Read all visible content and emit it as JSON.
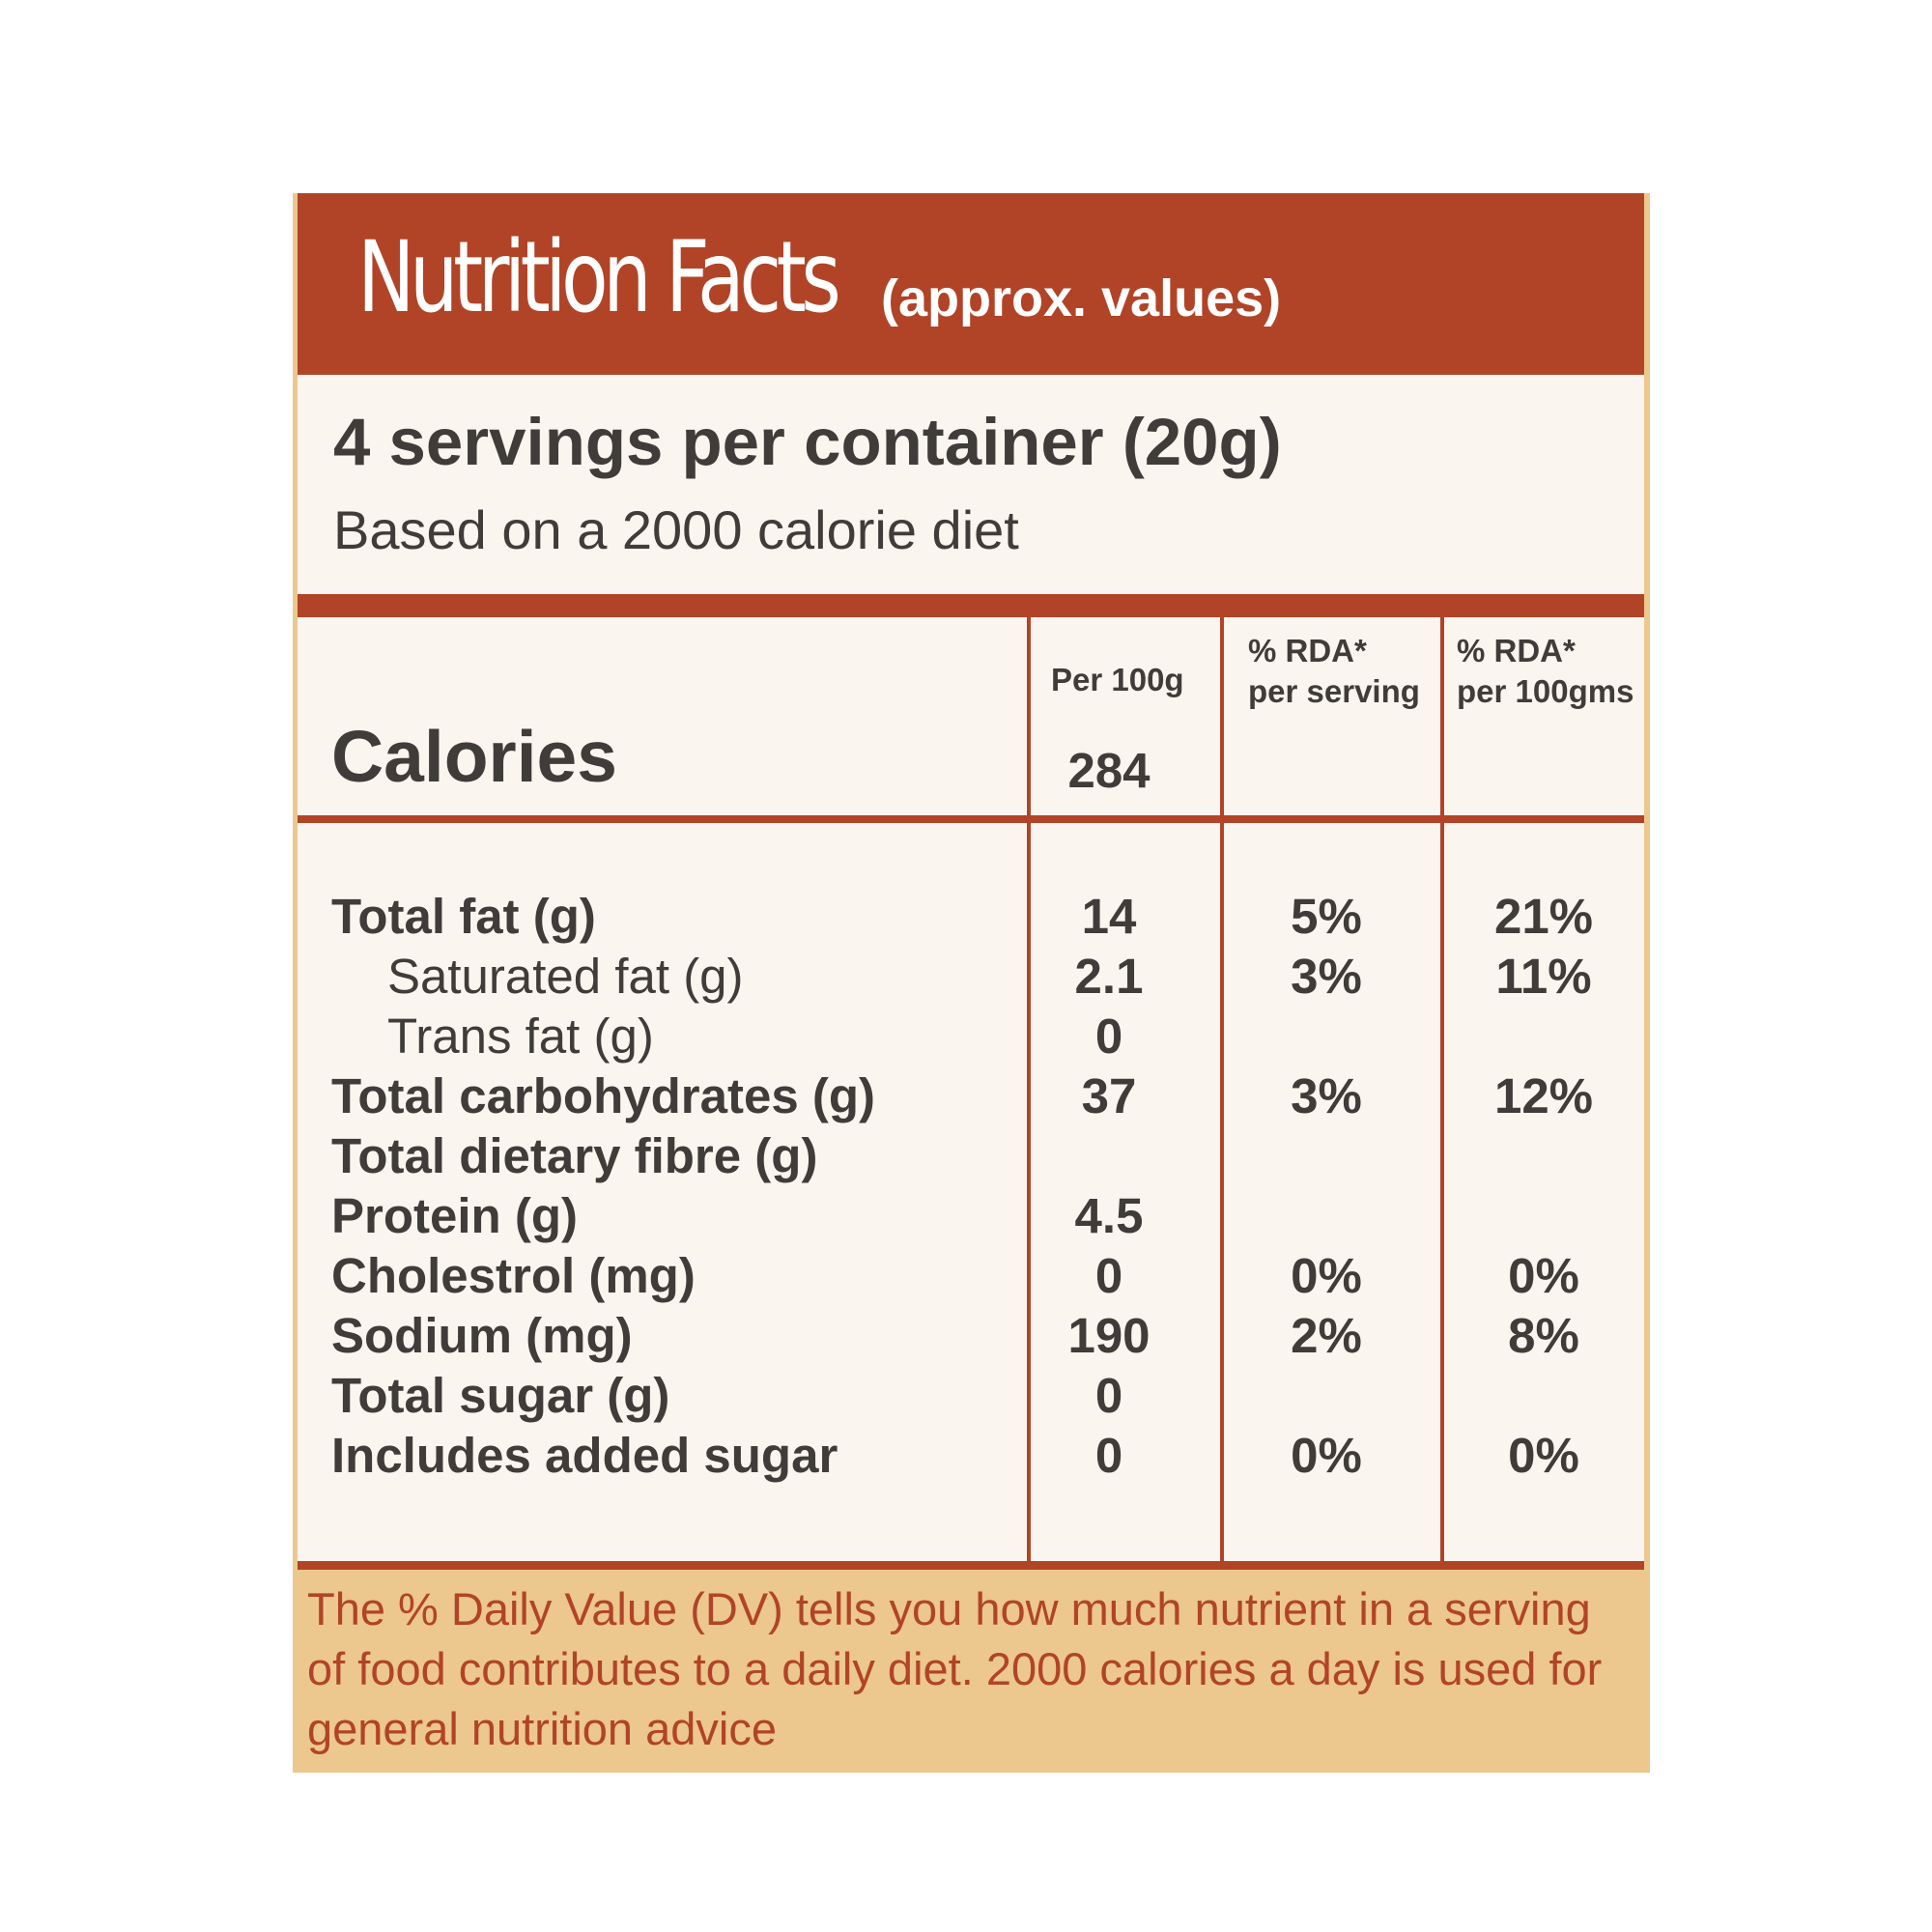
{
  "header": {
    "title": "Nutrition Facts",
    "subtitle": "(approx. values)"
  },
  "serving": {
    "servings": "4 servings per container (20g)",
    "basis": "Based on a 2000 calorie diet"
  },
  "table": {
    "calories_label": "Calories",
    "calories_value": "284",
    "columns": {
      "per100g": "Per 100g",
      "rda_serving_1": "% RDA*",
      "rda_serving_2": "per serving",
      "rda_100g_1": "% RDA*",
      "rda_100g_2": "per 100gms"
    },
    "rows": [
      {
        "name": "Total fat (g)",
        "per100g": "14",
        "rda_serving": "5%",
        "rda_100g": "21%"
      },
      {
        "name": "Saturated fat (g)",
        "per100g": "2.1",
        "rda_serving": "3%",
        "rda_100g": "11%"
      },
      {
        "name": "Trans fat (g)",
        "per100g": "0",
        "rda_serving": "",
        "rda_100g": ""
      },
      {
        "name": "Total carbohydrates (g)",
        "per100g": "37",
        "rda_serving": "3%",
        "rda_100g": "12%"
      },
      {
        "name": "Total dietary fibre (g)",
        "per100g": "",
        "rda_serving": "",
        "rda_100g": ""
      },
      {
        "name": "Protein (g)",
        "per100g": "4.5",
        "rda_serving": "",
        "rda_100g": ""
      },
      {
        "name": "Cholestrol (mg)",
        "per100g": "0",
        "rda_serving": "0%",
        "rda_100g": "0%"
      },
      {
        "name": "Sodium (mg)",
        "per100g": "190",
        "rda_serving": "2%",
        "rda_100g": "8%"
      },
      {
        "name": "Total sugar (g)",
        "per100g": "0",
        "rda_serving": "",
        "rda_100g": ""
      },
      {
        "name": "Includes added sugar",
        "per100g": "0",
        "rda_serving": "0%",
        "rda_100g": "0%"
      }
    ]
  },
  "footer": {
    "line1": "The % Daily Value (DV) tells you how much nutrient in a serving",
    "line2": "of food contributes to a daily diet. 2000 calories a day is used for",
    "line3": "general nutrition advice"
  },
  "colors": {
    "accent": "#b14427",
    "tan": "#ecc78e",
    "panel": "#faf5ef",
    "text": "#3f3c3a"
  }
}
